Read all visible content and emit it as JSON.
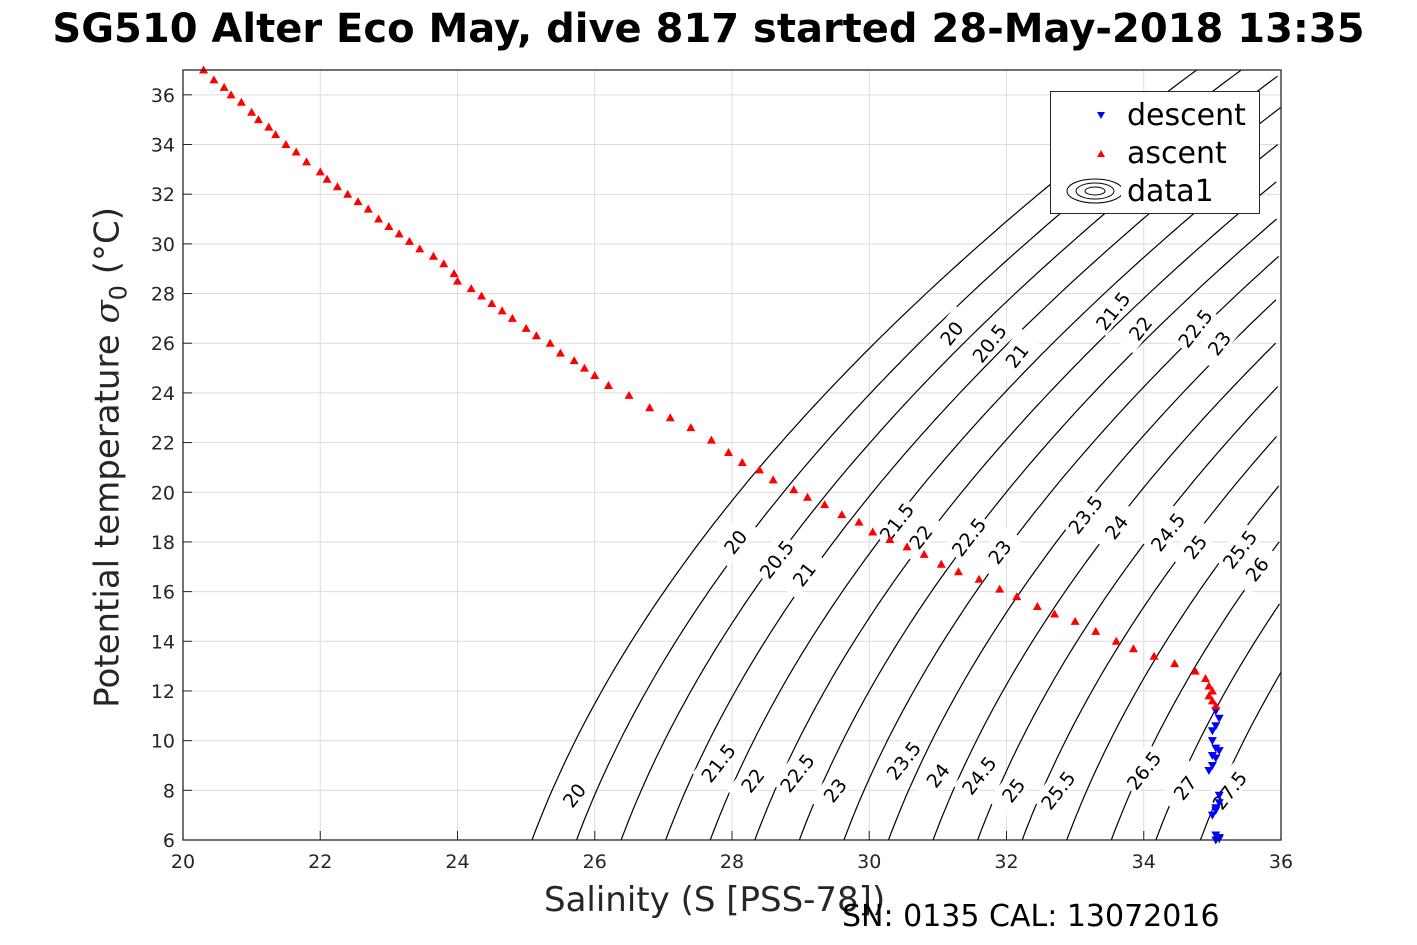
{
  "title": "SG510 Alter Eco May, dive 817 started 28-May-2018 13:35",
  "footnote": "SN: 0135  CAL: 13072016",
  "chart_data": {
    "type": "scatter",
    "xlabel": "Salinity (S [PSS-78])",
    "ylabel_main": "Potential temperature ",
    "ylabel_sym": "σ",
    "ylabel_sub": "0",
    "ylabel_unit": " (°C)",
    "xlim": [
      20,
      36
    ],
    "ylim": [
      6,
      37
    ],
    "xticks": [
      20,
      22,
      24,
      26,
      28,
      30,
      32,
      34,
      36
    ],
    "yticks": [
      6,
      8,
      10,
      12,
      14,
      16,
      18,
      20,
      22,
      24,
      26,
      28,
      30,
      32,
      34,
      36
    ],
    "grid": true,
    "legend_position": "top-right",
    "legend": [
      "descent",
      "ascent",
      "data1"
    ],
    "colors": {
      "descent": "#0000ff",
      "ascent": "#ff0000",
      "contour": "#000000"
    },
    "series": [
      {
        "name": "descent",
        "marker": "triangle-down",
        "points": [
          [
            35.05,
            6.0
          ],
          [
            35.1,
            6.1
          ],
          [
            35.05,
            6.2
          ],
          [
            35.1,
            6.05
          ],
          [
            35.0,
            7.0
          ],
          [
            35.05,
            7.2
          ],
          [
            35.1,
            7.5
          ],
          [
            35.05,
            7.3
          ],
          [
            35.1,
            7.8
          ],
          [
            34.95,
            8.8
          ],
          [
            35.0,
            9.0
          ],
          [
            35.05,
            9.3
          ],
          [
            35.1,
            9.6
          ],
          [
            35.05,
            9.7
          ],
          [
            35.0,
            9.4
          ],
          [
            35.0,
            10.0
          ],
          [
            35.0,
            10.4
          ],
          [
            35.05,
            10.6
          ],
          [
            35.1,
            10.9
          ],
          [
            35.05,
            11.2
          ]
        ]
      },
      {
        "name": "ascent",
        "marker": "triangle-up",
        "points": [
          [
            20.3,
            37.0
          ],
          [
            20.45,
            36.6
          ],
          [
            20.6,
            36.3
          ],
          [
            20.7,
            36.0
          ],
          [
            20.85,
            35.7
          ],
          [
            21.0,
            35.3
          ],
          [
            21.1,
            35.0
          ],
          [
            21.25,
            34.7
          ],
          [
            21.35,
            34.4
          ],
          [
            21.5,
            34.0
          ],
          [
            21.65,
            33.7
          ],
          [
            21.8,
            33.3
          ],
          [
            22.0,
            32.9
          ],
          [
            22.1,
            32.6
          ],
          [
            22.25,
            32.3
          ],
          [
            22.4,
            32.0
          ],
          [
            22.55,
            31.7
          ],
          [
            22.7,
            31.4
          ],
          [
            22.85,
            31.0
          ],
          [
            23.0,
            30.7
          ],
          [
            23.15,
            30.4
          ],
          [
            23.3,
            30.1
          ],
          [
            23.45,
            29.8
          ],
          [
            23.65,
            29.5
          ],
          [
            23.8,
            29.2
          ],
          [
            23.95,
            28.8
          ],
          [
            24.0,
            28.5
          ],
          [
            24.2,
            28.2
          ],
          [
            24.35,
            27.9
          ],
          [
            24.5,
            27.6
          ],
          [
            24.65,
            27.3
          ],
          [
            24.8,
            27.0
          ],
          [
            25.0,
            26.6
          ],
          [
            25.15,
            26.3
          ],
          [
            25.35,
            26.0
          ],
          [
            25.5,
            25.6
          ],
          [
            25.7,
            25.3
          ],
          [
            25.85,
            25.0
          ],
          [
            26.0,
            24.7
          ],
          [
            26.2,
            24.3
          ],
          [
            26.5,
            23.9
          ],
          [
            26.8,
            23.4
          ],
          [
            27.1,
            23.0
          ],
          [
            27.4,
            22.6
          ],
          [
            27.7,
            22.1
          ],
          [
            27.95,
            21.6
          ],
          [
            28.15,
            21.2
          ],
          [
            28.4,
            20.9
          ],
          [
            28.6,
            20.5
          ],
          [
            28.9,
            20.1
          ],
          [
            29.1,
            19.8
          ],
          [
            29.35,
            19.5
          ],
          [
            29.6,
            19.1
          ],
          [
            29.85,
            18.8
          ],
          [
            30.05,
            18.4
          ],
          [
            30.3,
            18.1
          ],
          [
            30.55,
            17.8
          ],
          [
            30.8,
            17.5
          ],
          [
            31.05,
            17.1
          ],
          [
            31.3,
            16.8
          ],
          [
            31.6,
            16.5
          ],
          [
            31.9,
            16.1
          ],
          [
            32.15,
            15.8
          ],
          [
            32.45,
            15.4
          ],
          [
            32.7,
            15.1
          ],
          [
            33.0,
            14.8
          ],
          [
            33.3,
            14.4
          ],
          [
            33.6,
            14.0
          ],
          [
            33.85,
            13.7
          ],
          [
            34.15,
            13.4
          ],
          [
            34.45,
            13.1
          ],
          [
            34.75,
            12.8
          ],
          [
            34.9,
            12.5
          ],
          [
            34.95,
            12.2
          ],
          [
            35.0,
            12.0
          ],
          [
            34.95,
            11.8
          ],
          [
            35.0,
            11.6
          ],
          [
            35.05,
            11.4
          ]
        ]
      }
    ],
    "contours": {
      "name": "data1",
      "levels": [
        20,
        20.5,
        21,
        21.5,
        22,
        22.5,
        23,
        23.5,
        24,
        24.5,
        25,
        25.5,
        26,
        26.5,
        27,
        27.5
      ]
    },
    "contour_labels": [
      {
        "text": "20",
        "x": 25.7,
        "y": 7.8
      },
      {
        "text": "21.5",
        "x": 27.8,
        "y": 9.1
      },
      {
        "text": "22",
        "x": 28.3,
        "y": 8.4
      },
      {
        "text": "22.5",
        "x": 28.95,
        "y": 8.7
      },
      {
        "text": "23",
        "x": 29.5,
        "y": 8.0
      },
      {
        "text": "23.5",
        "x": 30.5,
        "y": 9.2
      },
      {
        "text": "24",
        "x": 31.0,
        "y": 8.6
      },
      {
        "text": "24.5",
        "x": 31.6,
        "y": 8.6
      },
      {
        "text": "25",
        "x": 32.1,
        "y": 8.0
      },
      {
        "text": "25.5",
        "x": 32.75,
        "y": 8.0
      },
      {
        "text": "26.5",
        "x": 34.0,
        "y": 8.8
      },
      {
        "text": "27",
        "x": 34.6,
        "y": 8.1
      },
      {
        "text": "27.5",
        "x": 35.25,
        "y": 8.0
      },
      {
        "text": "20",
        "x": 28.05,
        "y": 18.0
      },
      {
        "text": "20.5",
        "x": 28.65,
        "y": 17.3
      },
      {
        "text": "21",
        "x": 29.05,
        "y": 16.7
      },
      {
        "text": "21.5",
        "x": 30.4,
        "y": 18.8
      },
      {
        "text": "22",
        "x": 30.75,
        "y": 18.2
      },
      {
        "text": "22.5",
        "x": 31.45,
        "y": 18.2
      },
      {
        "text": "23",
        "x": 31.9,
        "y": 17.6
      },
      {
        "text": "23.5",
        "x": 33.15,
        "y": 19.1
      },
      {
        "text": "24",
        "x": 33.6,
        "y": 18.6
      },
      {
        "text": "24.5",
        "x": 34.35,
        "y": 18.4
      },
      {
        "text": "25",
        "x": 34.75,
        "y": 17.8
      },
      {
        "text": "25.5",
        "x": 35.4,
        "y": 17.7
      },
      {
        "text": "26",
        "x": 35.65,
        "y": 16.9
      },
      {
        "text": "20",
        "x": 31.2,
        "y": 26.4
      },
      {
        "text": "20.5",
        "x": 31.75,
        "y": 26.0
      },
      {
        "text": "21",
        "x": 32.15,
        "y": 25.5
      },
      {
        "text": "21.5",
        "x": 33.55,
        "y": 27.3
      },
      {
        "text": "22",
        "x": 33.95,
        "y": 26.6
      },
      {
        "text": "22.5",
        "x": 34.75,
        "y": 26.6
      },
      {
        "text": "23",
        "x": 35.1,
        "y": 26.0
      }
    ]
  }
}
